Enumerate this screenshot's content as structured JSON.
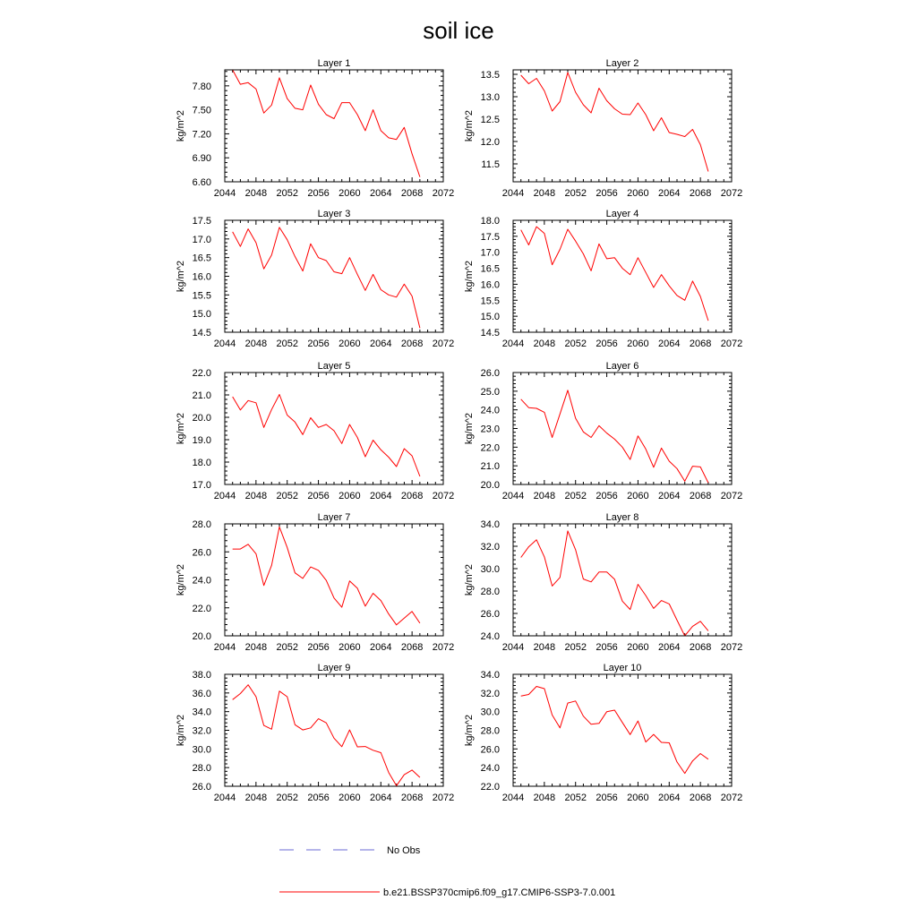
{
  "figure": {
    "title": "soil ice"
  },
  "legend": [
    {
      "label": "No Obs",
      "color": "#6b6bd6",
      "dash": true
    },
    {
      "label": "b.e21.BSSP370cmip6.f09_g17.CMIP6-SSP3-7.0.001",
      "color": "#ff0000",
      "dash": false
    }
  ],
  "chart_data": [
    {
      "type": "line",
      "title": "Layer 1",
      "ylabel": "kg/m^2",
      "xlim": [
        2044,
        2072
      ],
      "xticks": [
        2044,
        2048,
        2052,
        2056,
        2060,
        2064,
        2068,
        2072
      ],
      "ylim": [
        6.6,
        8.0
      ],
      "yticks": [
        "6.60",
        "6.90",
        "7.20",
        "7.50",
        "7.80"
      ],
      "ydecimals": 2,
      "series": [
        {
          "color": "#ff0000",
          "x": [
            2045,
            2046,
            2047,
            2048,
            2049,
            2050,
            2051,
            2052,
            2053,
            2054,
            2055,
            2056,
            2057,
            2058,
            2059,
            2060,
            2061,
            2062,
            2063,
            2064,
            2065,
            2066,
            2067,
            2068,
            2069
          ],
          "y": [
            8.0,
            7.82,
            7.84,
            7.76,
            7.46,
            7.56,
            7.9,
            7.64,
            7.52,
            7.5,
            7.81,
            7.57,
            7.44,
            7.39,
            7.59,
            7.59,
            7.44,
            7.24,
            7.5,
            7.24,
            7.15,
            7.13,
            7.28,
            6.95,
            6.66
          ]
        }
      ]
    },
    {
      "type": "line",
      "title": "Layer 2",
      "ylabel": "kg/m^2",
      "xlim": [
        2044,
        2072
      ],
      "xticks": [
        2044,
        2048,
        2052,
        2056,
        2060,
        2064,
        2068,
        2072
      ],
      "ylim": [
        11.1,
        13.6
      ],
      "yticks": [
        "11.5",
        "12.0",
        "12.5",
        "13.0",
        "13.5"
      ],
      "ydecimals": 1,
      "series": [
        {
          "color": "#ff0000",
          "x": [
            2045,
            2046,
            2047,
            2048,
            2049,
            2050,
            2051,
            2052,
            2053,
            2054,
            2055,
            2056,
            2057,
            2058,
            2059,
            2060,
            2061,
            2062,
            2063,
            2064,
            2065,
            2066,
            2067,
            2068,
            2069
          ],
          "y": [
            13.48,
            13.29,
            13.41,
            13.13,
            12.68,
            12.89,
            13.54,
            13.1,
            12.82,
            12.64,
            13.19,
            12.91,
            12.73,
            12.61,
            12.6,
            12.86,
            12.6,
            12.24,
            12.53,
            12.2,
            12.16,
            12.11,
            12.27,
            11.93,
            11.33
          ]
        }
      ]
    },
    {
      "type": "line",
      "title": "Layer 3",
      "ylabel": "kg/m^2",
      "xlim": [
        2044,
        2072
      ],
      "xticks": [
        2044,
        2048,
        2052,
        2056,
        2060,
        2064,
        2068,
        2072
      ],
      "ylim": [
        14.5,
        17.5
      ],
      "yticks": [
        "14.5",
        "15.0",
        "15.5",
        "16.0",
        "16.5",
        "17.0",
        "17.5"
      ],
      "ydecimals": 1,
      "series": [
        {
          "color": "#ff0000",
          "x": [
            2045,
            2046,
            2047,
            2048,
            2049,
            2050,
            2051,
            2052,
            2053,
            2054,
            2055,
            2056,
            2057,
            2058,
            2059,
            2060,
            2061,
            2062,
            2063,
            2064,
            2065,
            2066,
            2067,
            2068,
            2069
          ],
          "y": [
            17.19,
            16.8,
            17.27,
            16.9,
            16.2,
            16.57,
            17.31,
            16.98,
            16.53,
            16.14,
            16.87,
            16.5,
            16.42,
            16.12,
            16.07,
            16.5,
            16.05,
            15.62,
            16.05,
            15.64,
            15.5,
            15.44,
            15.79,
            15.47,
            14.61
          ]
        }
      ]
    },
    {
      "type": "line",
      "title": "Layer 4",
      "ylabel": "kg/m^2",
      "xlim": [
        2044,
        2072
      ],
      "xticks": [
        2044,
        2048,
        2052,
        2056,
        2060,
        2064,
        2068,
        2072
      ],
      "ylim": [
        14.5,
        18.0
      ],
      "yticks": [
        "14.5",
        "15.0",
        "15.5",
        "16.0",
        "16.5",
        "17.0",
        "17.5",
        "18.0"
      ],
      "ydecimals": 1,
      "series": [
        {
          "color": "#ff0000",
          "x": [
            2045,
            2046,
            2047,
            2048,
            2049,
            2050,
            2051,
            2052,
            2053,
            2054,
            2055,
            2056,
            2057,
            2058,
            2059,
            2060,
            2061,
            2062,
            2063,
            2064,
            2065,
            2066,
            2067,
            2068,
            2069
          ],
          "y": [
            17.7,
            17.23,
            17.8,
            17.59,
            16.61,
            17.09,
            17.72,
            17.35,
            16.95,
            16.42,
            17.26,
            16.8,
            16.83,
            16.5,
            16.3,
            16.83,
            16.37,
            15.9,
            16.3,
            15.95,
            15.65,
            15.5,
            16.1,
            15.62,
            14.86
          ]
        }
      ]
    },
    {
      "type": "line",
      "title": "Layer 5",
      "ylabel": "kg/m^2",
      "xlim": [
        2044,
        2072
      ],
      "xticks": [
        2044,
        2048,
        2052,
        2056,
        2060,
        2064,
        2068,
        2072
      ],
      "ylim": [
        17.0,
        22.0
      ],
      "yticks": [
        "17.0",
        "18.0",
        "19.0",
        "20.0",
        "21.0",
        "22.0"
      ],
      "ydecimals": 1,
      "series": [
        {
          "color": "#ff0000",
          "x": [
            2045,
            2046,
            2047,
            2048,
            2049,
            2050,
            2051,
            2052,
            2053,
            2054,
            2055,
            2056,
            2057,
            2058,
            2059,
            2060,
            2061,
            2062,
            2063,
            2064,
            2065,
            2066,
            2067,
            2068,
            2069
          ],
          "y": [
            20.92,
            20.33,
            20.75,
            20.65,
            19.55,
            20.35,
            21.02,
            20.1,
            19.79,
            19.23,
            19.98,
            19.55,
            19.68,
            19.4,
            18.83,
            19.68,
            19.1,
            18.24,
            18.98,
            18.55,
            18.22,
            17.8,
            18.6,
            18.28,
            17.36
          ]
        }
      ]
    },
    {
      "type": "line",
      "title": "Layer 6",
      "ylabel": "kg/m^2",
      "xlim": [
        2044,
        2072
      ],
      "xticks": [
        2044,
        2048,
        2052,
        2056,
        2060,
        2064,
        2068,
        2072
      ],
      "ylim": [
        20.0,
        26.0
      ],
      "yticks": [
        "20.0",
        "21.0",
        "22.0",
        "23.0",
        "24.0",
        "25.0",
        "26.0"
      ],
      "ydecimals": 1,
      "series": [
        {
          "color": "#ff0000",
          "x": [
            2045,
            2046,
            2047,
            2048,
            2049,
            2050,
            2051,
            2052,
            2053,
            2054,
            2055,
            2056,
            2057,
            2058,
            2059,
            2060,
            2061,
            2062,
            2063,
            2064,
            2065,
            2066,
            2067,
            2068,
            2069
          ],
          "y": [
            24.57,
            24.12,
            24.08,
            23.87,
            22.52,
            23.78,
            25.05,
            23.55,
            22.82,
            22.52,
            23.15,
            22.75,
            22.43,
            22.0,
            21.34,
            22.6,
            21.9,
            20.92,
            21.95,
            21.25,
            20.85,
            20.18,
            20.98,
            20.94,
            20.09
          ]
        }
      ]
    },
    {
      "type": "line",
      "title": "Layer 7",
      "ylabel": "kg/m^2",
      "xlim": [
        2044,
        2072
      ],
      "xticks": [
        2044,
        2048,
        2052,
        2056,
        2060,
        2064,
        2068,
        2072
      ],
      "ylim": [
        20.0,
        28.0
      ],
      "yticks": [
        "20.0",
        "22.0",
        "24.0",
        "26.0",
        "28.0"
      ],
      "ydecimals": 1,
      "series": [
        {
          "color": "#ff0000",
          "x": [
            2045,
            2046,
            2047,
            2048,
            2049,
            2050,
            2051,
            2052,
            2053,
            2054,
            2055,
            2056,
            2057,
            2058,
            2059,
            2060,
            2061,
            2062,
            2063,
            2064,
            2065,
            2066,
            2067,
            2068,
            2069
          ],
          "y": [
            26.2,
            26.2,
            26.54,
            25.86,
            23.6,
            25.04,
            27.78,
            26.32,
            24.5,
            24.1,
            24.92,
            24.68,
            23.96,
            22.7,
            22.04,
            23.92,
            23.4,
            22.12,
            23.04,
            22.52,
            21.56,
            20.78,
            21.27,
            21.74,
            20.9
          ]
        }
      ]
    },
    {
      "type": "line",
      "title": "Layer 8",
      "ylabel": "kg/m^2",
      "xlim": [
        2044,
        2072
      ],
      "xticks": [
        2044,
        2048,
        2052,
        2056,
        2060,
        2064,
        2068,
        2072
      ],
      "ylim": [
        24.0,
        34.0
      ],
      "yticks": [
        "24.0",
        "26.0",
        "28.0",
        "30.0",
        "32.0",
        "34.0"
      ],
      "ydecimals": 1,
      "series": [
        {
          "color": "#ff0000",
          "x": [
            2045,
            2046,
            2047,
            2048,
            2049,
            2050,
            2051,
            2052,
            2053,
            2054,
            2055,
            2056,
            2057,
            2058,
            2059,
            2060,
            2061,
            2062,
            2063,
            2064,
            2065,
            2066,
            2067,
            2068,
            2069
          ],
          "y": [
            31.0,
            31.95,
            32.58,
            31.05,
            28.45,
            29.22,
            33.37,
            31.7,
            29.07,
            28.82,
            29.7,
            29.7,
            29.05,
            27.1,
            26.35,
            28.6,
            27.6,
            26.45,
            27.15,
            26.85,
            25.4,
            24.0,
            24.85,
            25.3,
            24.45
          ]
        }
      ]
    },
    {
      "type": "line",
      "title": "Layer 9",
      "ylabel": "kg/m^2",
      "xlim": [
        2044,
        2072
      ],
      "xticks": [
        2044,
        2048,
        2052,
        2056,
        2060,
        2064,
        2068,
        2072
      ],
      "ylim": [
        26.0,
        38.0
      ],
      "yticks": [
        "26.0",
        "28.0",
        "30.0",
        "32.0",
        "34.0",
        "36.0",
        "38.0"
      ],
      "ydecimals": 1,
      "series": [
        {
          "color": "#ff0000",
          "x": [
            2045,
            2046,
            2047,
            2048,
            2049,
            2050,
            2051,
            2052,
            2053,
            2054,
            2055,
            2056,
            2057,
            2058,
            2059,
            2060,
            2061,
            2062,
            2063,
            2064,
            2065,
            2066,
            2067,
            2068,
            2069
          ],
          "y": [
            35.28,
            35.94,
            36.88,
            35.6,
            32.52,
            32.12,
            36.2,
            35.6,
            32.6,
            32.04,
            32.26,
            33.24,
            32.8,
            31.16,
            30.24,
            32.04,
            30.22,
            30.26,
            29.86,
            29.6,
            27.48,
            26.06,
            27.24,
            27.74,
            26.95
          ]
        }
      ]
    },
    {
      "type": "line",
      "title": "Layer 10",
      "ylabel": "kg/m^2",
      "xlim": [
        2044,
        2072
      ],
      "xticks": [
        2044,
        2048,
        2052,
        2056,
        2060,
        2064,
        2068,
        2072
      ],
      "ylim": [
        22.0,
        34.0
      ],
      "yticks": [
        "22.0",
        "24.0",
        "26.0",
        "28.0",
        "30.0",
        "32.0",
        "34.0"
      ],
      "ydecimals": 1,
      "series": [
        {
          "color": "#ff0000",
          "x": [
            2045,
            2046,
            2047,
            2048,
            2049,
            2050,
            2051,
            2052,
            2053,
            2054,
            2055,
            2056,
            2057,
            2058,
            2059,
            2060,
            2061,
            2062,
            2063,
            2064,
            2065,
            2066,
            2067,
            2068,
            2069
          ],
          "y": [
            31.68,
            31.84,
            32.7,
            32.46,
            29.64,
            28.26,
            30.92,
            31.14,
            29.52,
            28.64,
            28.74,
            30.0,
            30.16,
            28.84,
            27.54,
            29.0,
            26.74,
            27.56,
            26.7,
            26.66,
            24.6,
            23.38,
            24.72,
            25.5,
            24.9
          ]
        }
      ]
    }
  ]
}
